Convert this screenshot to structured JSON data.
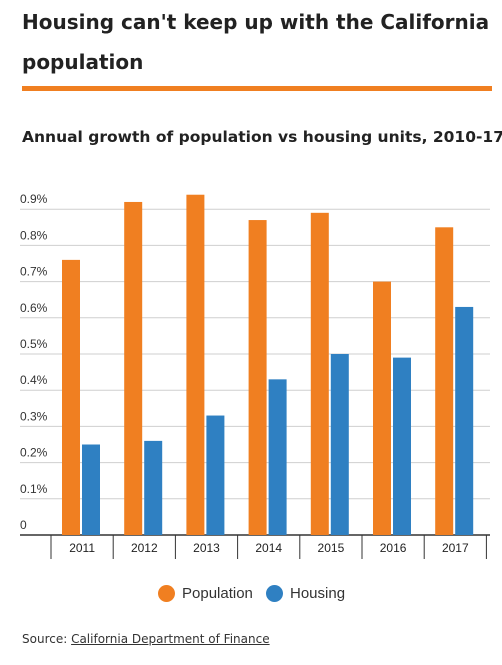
{
  "headline": "Housing can't keep up with the California population",
  "colors": {
    "accent": "#f07f21",
    "population": "#f07f21",
    "housing": "#2f80c2"
  },
  "chart_data": {
    "type": "bar",
    "title": "Annual growth of population vs housing units, 2010-17",
    "categories": [
      "2011",
      "2012",
      "2013",
      "2014",
      "2015",
      "2016",
      "2017"
    ],
    "series": [
      {
        "name": "Population",
        "color": "#f07f21",
        "values": [
          0.76,
          0.92,
          0.94,
          0.87,
          0.89,
          0.7,
          0.85
        ]
      },
      {
        "name": "Housing",
        "color": "#2f80c2",
        "values": [
          0.25,
          0.26,
          0.33,
          0.43,
          0.5,
          0.49,
          0.63
        ]
      }
    ],
    "ylim": [
      0,
      0.9
    ],
    "yticks": [
      {
        "value": 0,
        "label": "0"
      },
      {
        "value": 0.1,
        "label": "0.1%"
      },
      {
        "value": 0.2,
        "label": "0.2%"
      },
      {
        "value": 0.3,
        "label": "0.3%"
      },
      {
        "value": 0.4,
        "label": "0.4%"
      },
      {
        "value": 0.5,
        "label": "0.5%"
      },
      {
        "value": 0.6,
        "label": "0.6%"
      },
      {
        "value": 0.7,
        "label": "0.7%"
      },
      {
        "value": 0.8,
        "label": "0.8%"
      },
      {
        "value": 0.9,
        "label": "0.9%"
      }
    ],
    "grid": true,
    "legend_position": "bottom-center"
  },
  "source": {
    "prefix": "Source: ",
    "link": "California Department of Finance"
  }
}
